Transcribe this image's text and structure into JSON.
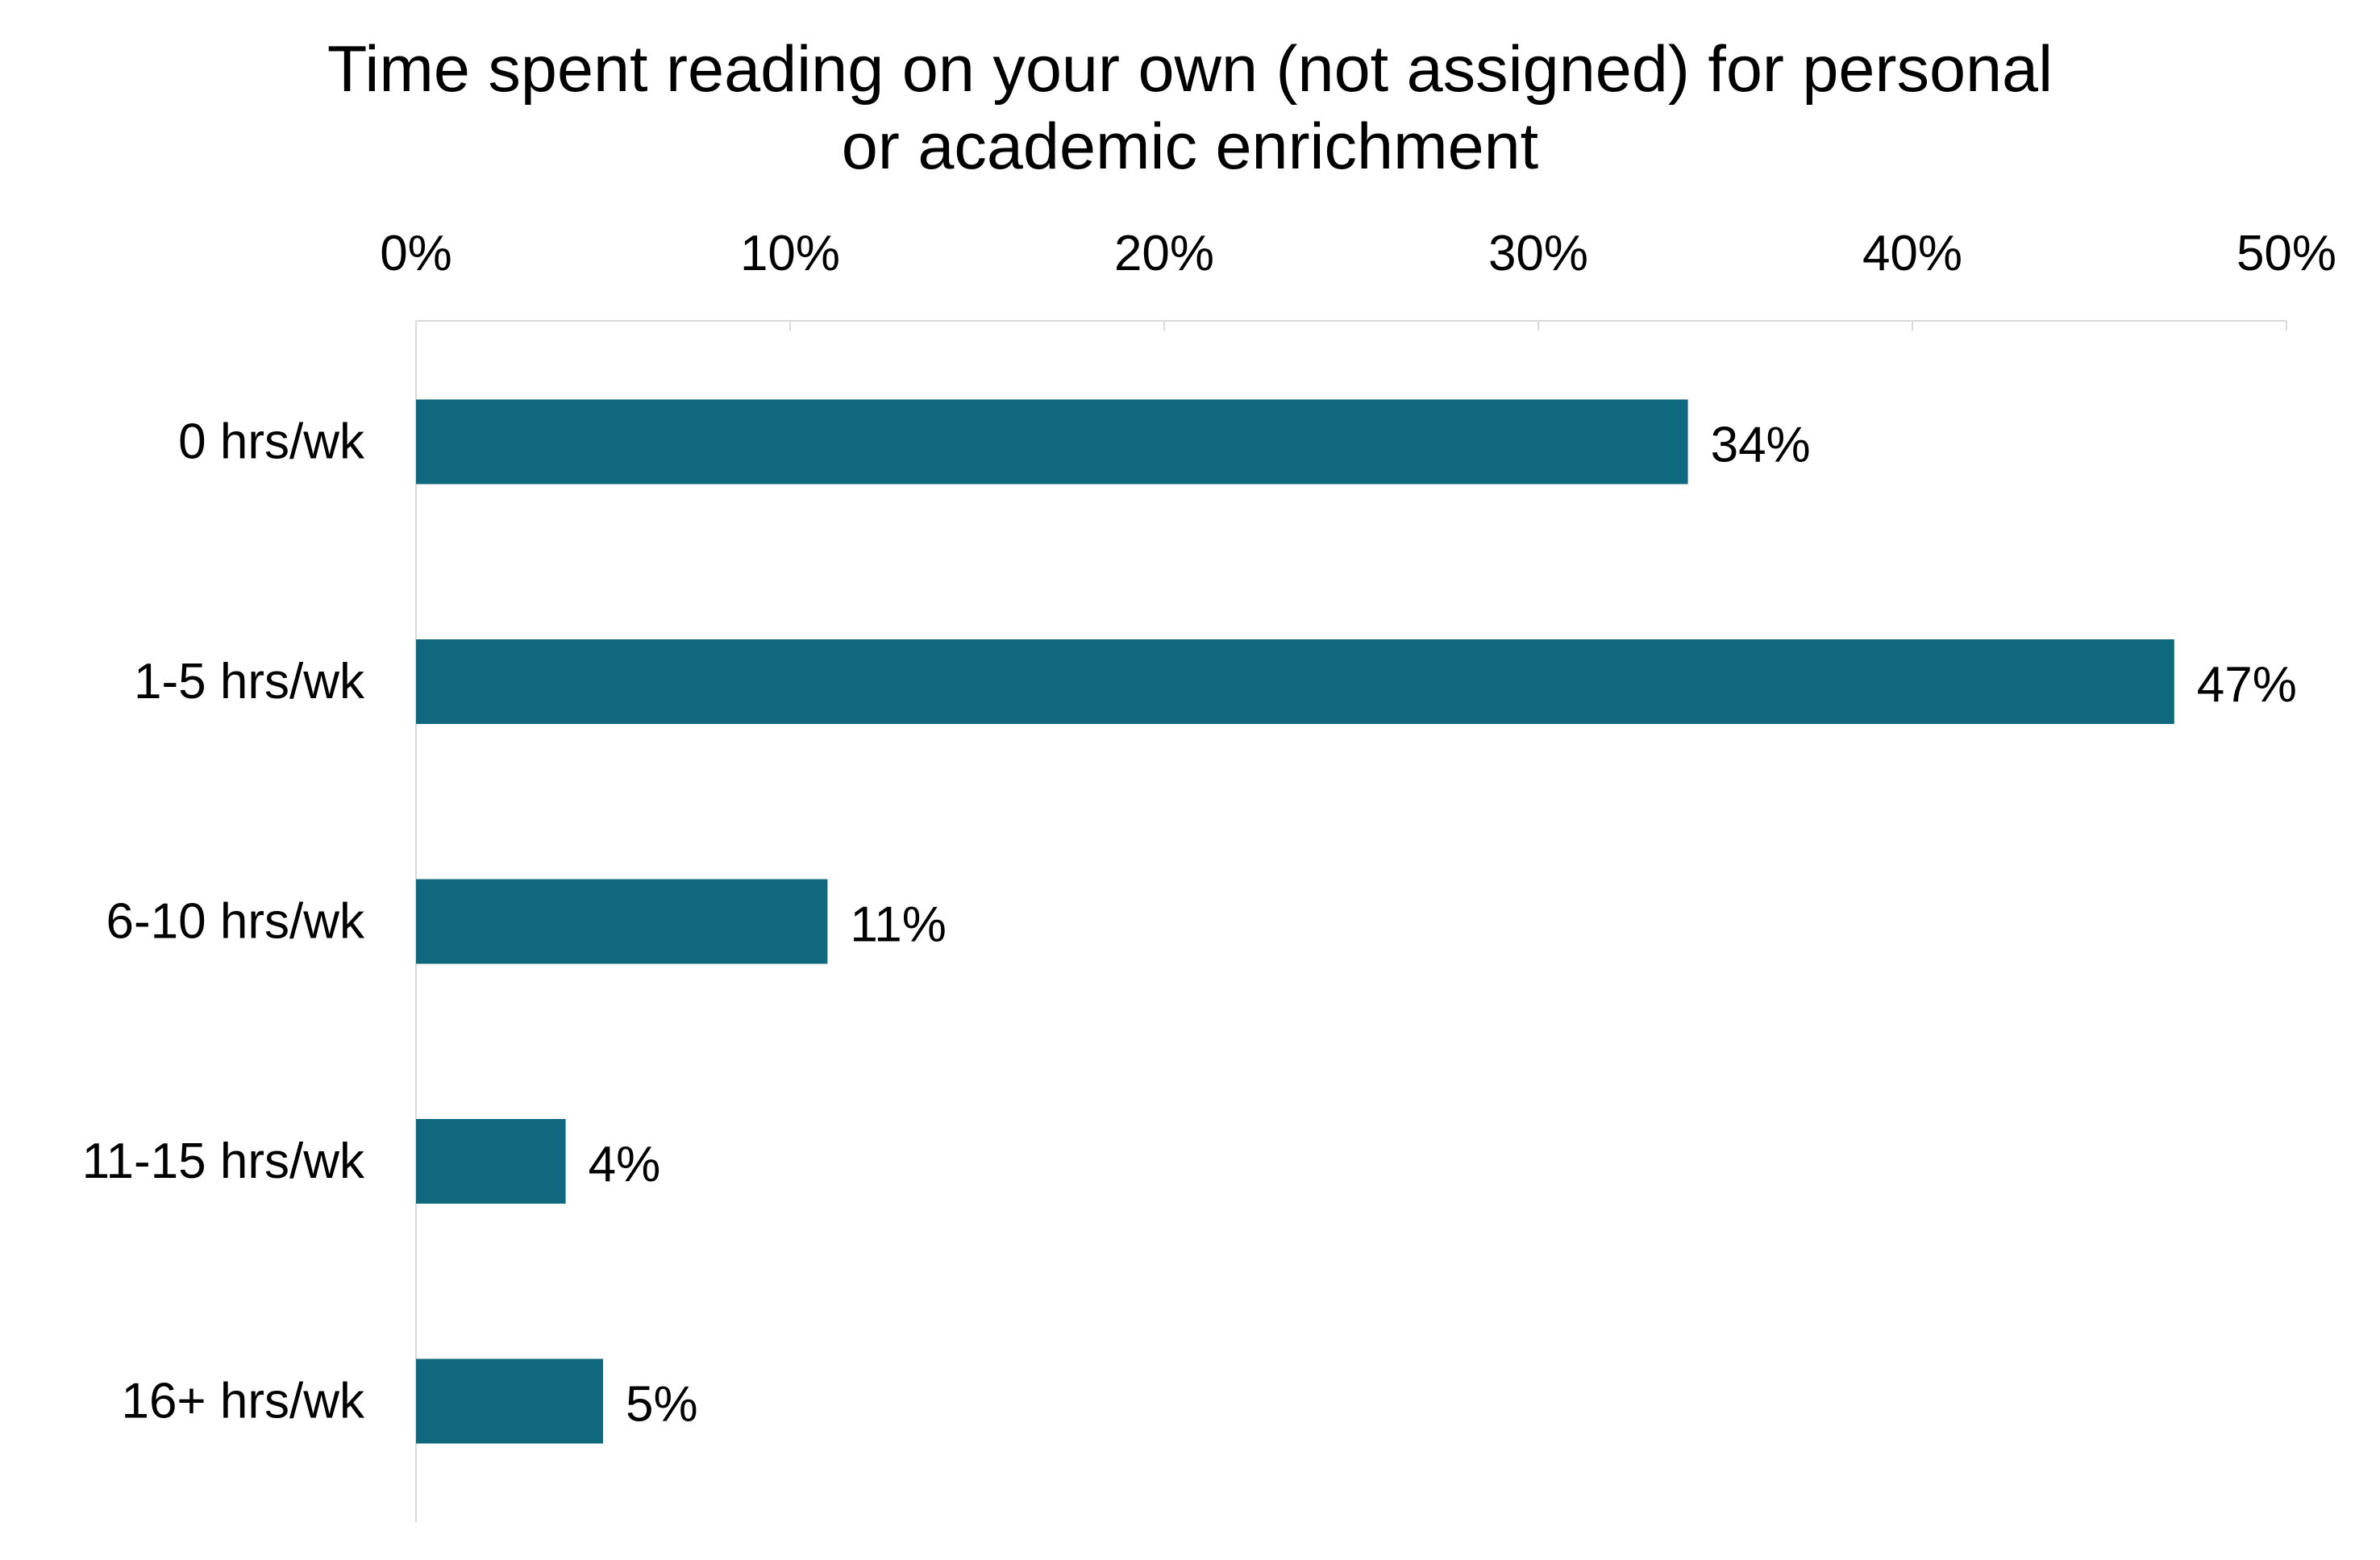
{
  "chart_data": {
    "type": "bar",
    "orientation": "horizontal",
    "title": "Time spent reading on your own (not assigned) for personal\nor academic enrichment",
    "categories": [
      "0 hrs/wk",
      "1-5 hrs/wk",
      "6-10 hrs/wk",
      "11-15 hrs/wk",
      "16+ hrs/wk"
    ],
    "values": [
      34,
      47,
      11,
      4,
      5
    ],
    "data_labels": [
      "34%",
      "47%",
      "11%",
      "4%",
      "5%"
    ],
    "xlim": [
      0,
      50
    ],
    "x_ticks": [
      0,
      10,
      20,
      30,
      40,
      50
    ],
    "x_tick_labels": [
      "0%",
      "10%",
      "20%",
      "30%",
      "40%",
      "50%"
    ],
    "x_axis_position": "top",
    "grid": false,
    "legend": "none",
    "bar_color": "#10687F",
    "axis_color": "#D9D9D9"
  }
}
